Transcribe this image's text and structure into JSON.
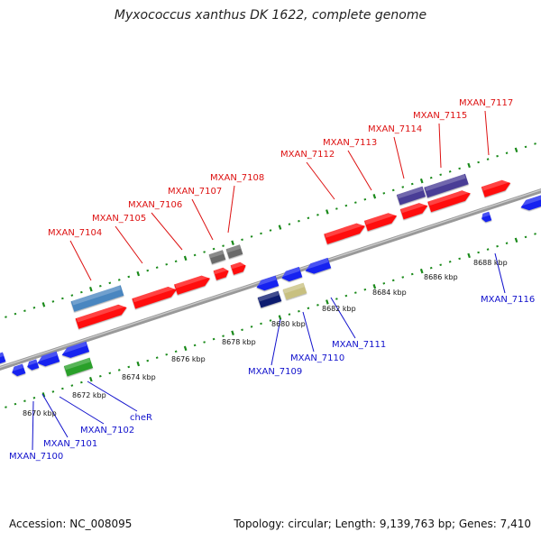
{
  "header": {
    "title": "Myxococcus xanthus DK 1622, complete genome"
  },
  "footer": {
    "accession": "Accession: NC_008095",
    "summary": "Topology: circular; Length: 9,139,763 bp; Genes: 7,410"
  },
  "colors": {
    "forward_gene": "#ff1010",
    "reverse_gene": "#1420f0",
    "navy_gene": "#0d1a70",
    "purple_gene": "#4a3c96",
    "steelblue_gene": "#4a86c0",
    "gray_gene": "#6a6a6a",
    "green_gene": "#2ca02c",
    "khaki_gene": "#c8c080",
    "backbone": "#999999",
    "ticks": "#1a8a1a",
    "forward_label": "#dd1111",
    "reverse_label": "#1111cc"
  },
  "kbp_ticks": [
    "8670 kbp",
    "8672 kbp",
    "8674 kbp",
    "8676 kbp",
    "8678 kbp",
    "8680 kbp",
    "8682 kbp",
    "8684 kbp",
    "8686 kbp",
    "8688 kbp"
  ],
  "forward_labels": [
    "MXAN_7104",
    "MXAN_7105",
    "MXAN_7106",
    "MXAN_7107",
    "MXAN_7108",
    "MXAN_7112",
    "MXAN_7113",
    "MXAN_7114",
    "MXAN_7115",
    "MXAN_7117"
  ],
  "reverse_labels": [
    "MXAN_7100",
    "MXAN_7101",
    "MXAN_7102",
    "cheR",
    "MXAN_7109",
    "MXAN_7110",
    "MXAN_7111",
    "MXAN_7116"
  ]
}
